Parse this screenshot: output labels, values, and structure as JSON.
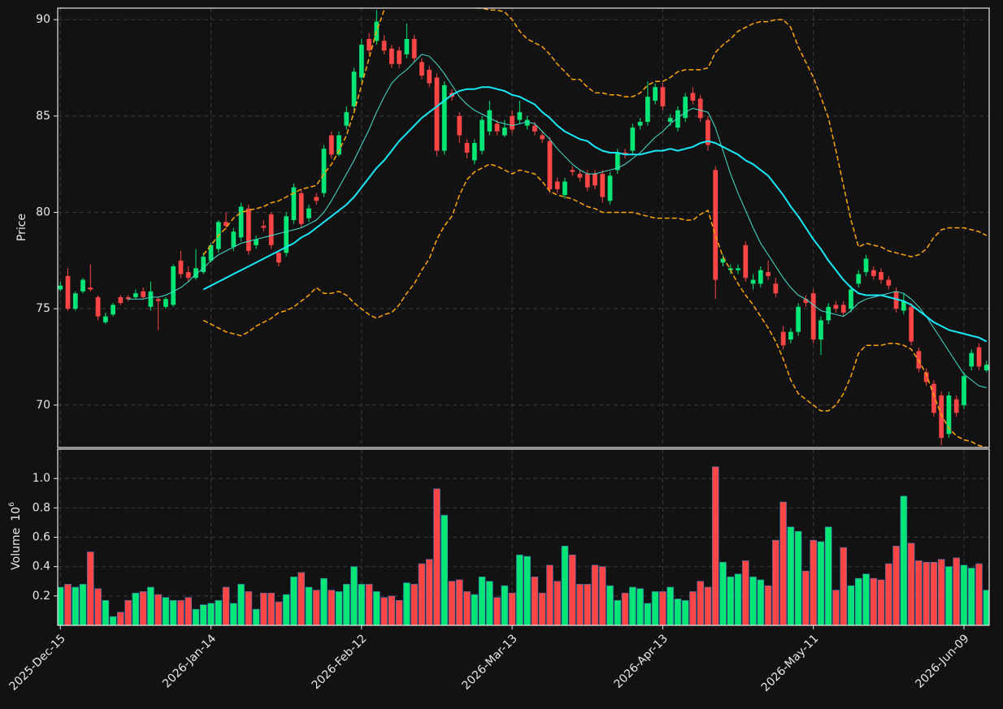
{
  "chart_data": {
    "type": "candlestick",
    "categories": [
      "2025-Dec-15",
      null,
      null,
      null,
      null,
      null,
      null,
      null,
      null,
      null,
      null,
      null,
      null,
      null,
      null,
      null,
      null,
      null,
      null,
      null,
      "2026-Jan-14",
      null,
      null,
      null,
      null,
      null,
      null,
      null,
      null,
      null,
      null,
      null,
      null,
      null,
      null,
      null,
      null,
      null,
      null,
      null,
      "2026-Feb-12",
      null,
      null,
      null,
      null,
      null,
      null,
      null,
      null,
      null,
      null,
      null,
      null,
      null,
      null,
      null,
      null,
      null,
      null,
      null,
      "2026-Mar-13",
      null,
      null,
      null,
      null,
      null,
      null,
      null,
      null,
      null,
      null,
      null,
      null,
      null,
      null,
      null,
      null,
      null,
      null,
      null,
      "2026-Apr-13",
      null,
      null,
      null,
      null,
      null,
      null,
      null,
      null,
      null,
      null,
      null,
      null,
      null,
      null,
      null,
      null,
      null,
      null,
      null,
      "2026-May-11",
      null,
      null,
      null,
      null,
      null,
      null,
      null,
      null,
      null,
      null,
      null,
      null,
      null,
      null,
      null,
      null,
      null,
      null,
      null,
      "2026-Jun-09",
      null,
      null,
      null
    ],
    "open": [
      76.0,
      76.7,
      75.0,
      75.9,
      76.1,
      75.6,
      74.3,
      74.7,
      75.6,
      75.6,
      75.6,
      75.9,
      75.1,
      75.5,
      75.1,
      75.2,
      77.5,
      76.9,
      76.6,
      76.9,
      77.5,
      78.1,
      79.5,
      78.2,
      78.7,
      80.2,
      78.3,
      79.3,
      79.9,
      77.9,
      77.9,
      79.6,
      81.0,
      79.7,
      80.8,
      81.0,
      84.0,
      83.0,
      84.5,
      85.5,
      87.0,
      89.0,
      88.9,
      88.9,
      88.5,
      88.4,
      88.2,
      89.0,
      87.8,
      87.4,
      87.0,
      83.2,
      86.2,
      85.0,
      83.6,
      82.7,
      83.2,
      84.2,
      84.6,
      84.0,
      85.0,
      84.8,
      84.5,
      84.5,
      84.0,
      83.7,
      81.6,
      80.9,
      82.2,
      82.0,
      82.0,
      82.0,
      82.0,
      80.6,
      82.2,
      83.1,
      83.2,
      84.5,
      84.7,
      85.8,
      86.5,
      84.7,
      84.4,
      84.9,
      86.2,
      85.9,
      84.8,
      82.2,
      77.4,
      77.0,
      77.0,
      78.3,
      76.3,
      76.3,
      76.9,
      76.3,
      73.8,
      73.4,
      73.8,
      75.5,
      75.8,
      73.4,
      74.4,
      75.2,
      75.2,
      75.0,
      76.3,
      76.9,
      77.0,
      76.9,
      76.5,
      75.9,
      74.9,
      75.1,
      72.8,
      71.7,
      71.1,
      70.5,
      68.5,
      70.3,
      70.0,
      72.0,
      73.0,
      71.8
    ],
    "high": [
      76.4,
      77.1,
      75.9,
      76.6,
      77.3,
      75.7,
      74.8,
      75.3,
      75.7,
      75.7,
      76.0,
      76.1,
      76.4,
      75.6,
      75.6,
      77.3,
      78.0,
      77.2,
      78.1,
      77.9,
      78.4,
      79.6,
      80.0,
      79.2,
      80.5,
      80.4,
      78.8,
      79.6,
      80.0,
      78.0,
      80.0,
      81.5,
      81.2,
      80.4,
      81.0,
      83.5,
      84.2,
      84.2,
      85.5,
      87.5,
      89.0,
      89.3,
      90.5,
      89.2,
      88.7,
      88.6,
      89.8,
      89.2,
      88.0,
      87.6,
      87.2,
      86.8,
      86.4,
      85.2,
      83.8,
      83.8,
      85.0,
      85.8,
      84.8,
      84.8,
      85.3,
      85.8,
      85.0,
      84.7,
      84.2,
      83.9,
      81.8,
      81.8,
      82.4,
      82.2,
      82.2,
      82.2,
      82.2,
      82.1,
      83.3,
      83.3,
      84.6,
      84.9,
      86.8,
      86.7,
      86.7,
      85.1,
      85.5,
      86.2,
      86.5,
      86.1,
      85.0,
      82.4,
      77.8,
      77.3,
      77.3,
      78.5,
      76.8,
      77.2,
      77.5,
      76.6,
      74.1,
      74.0,
      75.3,
      75.7,
      76.0,
      74.6,
      75.3,
      75.4,
      75.4,
      76.2,
      77.0,
      77.8,
      77.2,
      77.1,
      76.7,
      76.1,
      75.8,
      75.3,
      73.0,
      71.9,
      71.3,
      70.7,
      70.7,
      70.5,
      71.7,
      72.9,
      73.2,
      72.3
    ],
    "low": [
      75.9,
      74.9,
      74.9,
      75.8,
      75.9,
      74.4,
      74.2,
      74.6,
      75.2,
      75.4,
      75.5,
      75.5,
      74.9,
      73.9,
      75.0,
      75.1,
      76.6,
      76.4,
      76.5,
      76.8,
      77.4,
      77.9,
      79.1,
      78.0,
      78.5,
      77.8,
      78.1,
      79.0,
      78.1,
      77.2,
      77.7,
      79.4,
      79.2,
      79.5,
      80.4,
      80.8,
      82.8,
      82.9,
      84.3,
      85.3,
      86.8,
      88.2,
      88.7,
      88.2,
      87.5,
      87.5,
      88.0,
      87.8,
      86.9,
      86.5,
      82.9,
      83.0,
      85.8,
      83.6,
      82.8,
      82.5,
      83.0,
      84.0,
      84.0,
      83.9,
      84.1,
      84.6,
      84.3,
      84.0,
      83.6,
      81.0,
      81.0,
      80.7,
      81.9,
      81.6,
      81.1,
      81.2,
      80.5,
      80.4,
      82.0,
      82.8,
      83.0,
      84.3,
      84.5,
      85.6,
      85.3,
      84.5,
      84.2,
      84.7,
      85.6,
      84.7,
      83.2,
      75.5,
      77.2,
      76.8,
      76.8,
      76.4,
      76.0,
      76.1,
      76.5,
      75.6,
      72.9,
      73.2,
      73.6,
      75.1,
      73.2,
      72.6,
      74.2,
      74.8,
      74.6,
      74.8,
      76.1,
      76.7,
      76.5,
      76.3,
      76.0,
      74.8,
      74.7,
      73.1,
      71.7,
      71.0,
      69.4,
      67.9,
      68.3,
      69.4,
      69.8,
      71.8,
      71.8,
      71.7
    ],
    "close": [
      76.2,
      75.0,
      75.8,
      76.5,
      76.0,
      74.6,
      74.6,
      75.2,
      75.3,
      75.5,
      75.8,
      75.6,
      75.9,
      75.4,
      75.5,
      77.2,
      76.8,
      76.6,
      77.1,
      77.7,
      78.3,
      79.5,
      79.3,
      79.0,
      80.3,
      78.0,
      78.6,
      79.2,
      78.3,
      77.4,
      79.8,
      81.3,
      79.4,
      80.2,
      80.6,
      83.3,
      83.0,
      84.0,
      85.2,
      87.3,
      88.7,
      88.4,
      89.9,
      88.4,
      87.7,
      87.7,
      89.0,
      88.0,
      87.1,
      86.7,
      83.2,
      86.6,
      86.0,
      84.0,
      83.1,
      83.6,
      84.8,
      85.3,
      84.2,
      84.4,
      84.3,
      85.2,
      84.8,
      84.2,
      83.8,
      81.2,
      81.2,
      81.6,
      82.1,
      81.8,
      81.3,
      81.4,
      80.8,
      81.9,
      83.1,
      83.0,
      84.4,
      84.7,
      86.0,
      86.5,
      85.5,
      84.9,
      85.3,
      86.0,
      85.8,
      84.9,
      83.5,
      76.5,
      77.6,
      77.1,
      77.1,
      76.6,
      76.5,
      77.0,
      76.7,
      75.8,
      73.1,
      73.8,
      75.1,
      75.3,
      73.4,
      74.4,
      75.1,
      75.0,
      74.8,
      76.0,
      76.8,
      77.6,
      76.7,
      76.5,
      76.2,
      75.0,
      75.4,
      73.3,
      71.9,
      71.2,
      69.6,
      68.3,
      70.5,
      69.6,
      71.5,
      72.7,
      72.0,
      72.1
    ],
    "up_color": "#00e676",
    "down_color": "#ff4545",
    "ylabel": "Price",
    "ylim": [
      67.8,
      90.6
    ],
    "yticks": [
      70,
      75,
      80,
      85,
      90
    ],
    "grid": true,
    "series": [
      {
        "color": "#40e0d0",
        "linestyle": "solid",
        "linewidth": 1,
        "values": [
          null,
          null,
          null,
          null,
          null,
          null,
          null,
          null,
          null,
          75.5,
          75.5,
          75.5,
          75.6,
          75.6,
          75.7,
          75.9,
          76.1,
          76.4,
          76.8,
          77.1,
          77.5,
          77.8,
          78.0,
          78.2,
          78.4,
          78.5,
          78.6,
          78.7,
          78.8,
          78.9,
          79.0,
          79.1,
          79.2,
          79.4,
          79.6,
          80.0,
          80.6,
          81.3,
          82.0,
          82.7,
          83.5,
          84.3,
          85.2,
          86.0,
          86.7,
          87.1,
          87.4,
          87.8,
          88.2,
          88.1,
          87.7,
          87.2,
          86.6,
          86.0,
          85.6,
          85.3,
          85.1,
          84.9,
          84.7,
          84.6,
          84.5,
          84.6,
          84.7,
          84.6,
          84.2,
          83.8,
          83.3,
          82.9,
          82.5,
          82.2,
          82.0,
          82.0,
          82.1,
          82.2,
          82.3,
          82.5,
          82.8,
          83.1,
          83.5,
          83.9,
          84.2,
          84.6,
          84.9,
          85.2,
          85.4,
          85.3,
          85.2,
          84.4,
          83.2,
          82.0,
          81.0,
          80.1,
          79.2,
          78.4,
          77.8,
          77.2,
          76.6,
          76.1,
          75.7,
          75.5,
          75.2,
          74.9,
          74.8,
          74.7,
          74.6,
          74.9,
          75.3,
          75.5,
          75.6,
          75.7,
          75.8,
          75.9,
          75.8,
          75.5,
          75.1,
          74.6,
          74.0,
          73.4,
          72.8,
          72.2,
          71.6,
          71.3,
          71.0,
          70.9
        ]
      },
      {
        "color": "#18e8f8",
        "linestyle": "solid",
        "linewidth": 2,
        "values": [
          null,
          null,
          null,
          null,
          null,
          null,
          null,
          null,
          null,
          null,
          null,
          null,
          null,
          null,
          null,
          null,
          null,
          null,
          null,
          76.0,
          76.2,
          76.4,
          76.6,
          76.8,
          77.0,
          77.2,
          77.4,
          77.6,
          77.8,
          78.0,
          78.2,
          78.4,
          78.7,
          78.9,
          79.2,
          79.5,
          79.8,
          80.1,
          80.4,
          80.8,
          81.3,
          81.8,
          82.3,
          82.7,
          83.2,
          83.7,
          84.1,
          84.5,
          84.9,
          85.2,
          85.5,
          85.8,
          86.1,
          86.3,
          86.4,
          86.4,
          86.5,
          86.5,
          86.4,
          86.3,
          86.1,
          86.0,
          85.8,
          85.6,
          85.2,
          84.9,
          84.5,
          84.2,
          84.0,
          83.8,
          83.7,
          83.4,
          83.2,
          83.1,
          83.1,
          83.0,
          83.0,
          83.0,
          83.1,
          83.2,
          83.2,
          83.3,
          83.2,
          83.3,
          83.4,
          83.6,
          83.7,
          83.6,
          83.4,
          83.2,
          83.0,
          82.7,
          82.5,
          82.2,
          81.9,
          81.4,
          80.9,
          80.3,
          79.8,
          79.2,
          78.6,
          78.1,
          77.5,
          77.0,
          76.5,
          76.1,
          75.8,
          75.7,
          75.7,
          75.7,
          75.6,
          75.5,
          75.4,
          75.2,
          74.9,
          74.6,
          74.3,
          74.1,
          73.9,
          73.8,
          73.7,
          73.6,
          73.5,
          73.3
        ]
      },
      {
        "color": "#ffa500",
        "linestyle": "dashed",
        "linewidth": 1.5,
        "values": [
          null,
          null,
          null,
          null,
          null,
          null,
          null,
          null,
          null,
          null,
          null,
          null,
          null,
          null,
          null,
          null,
          null,
          null,
          null,
          77.8,
          78.3,
          78.8,
          79.2,
          79.7,
          80.0,
          80.1,
          80.2,
          80.3,
          80.5,
          80.6,
          80.8,
          81.0,
          81.2,
          81.3,
          81.4,
          82.0,
          82.5,
          83.2,
          84.0,
          85.2,
          86.6,
          88.0,
          89.4,
          90.5,
          91.2,
          91.7,
          92.0,
          92.2,
          92.3,
          92.3,
          92.2,
          91.9,
          91.6,
          91.2,
          90.9,
          90.6,
          90.6,
          90.5,
          90.5,
          90.4,
          90.0,
          89.4,
          89.0,
          88.8,
          88.6,
          88.2,
          87.7,
          87.3,
          86.9,
          86.9,
          86.5,
          86.2,
          86.2,
          86.1,
          86.1,
          86.0,
          86.0,
          86.2,
          86.6,
          86.8,
          86.8,
          87.0,
          87.3,
          87.4,
          87.4,
          87.4,
          87.5,
          88.3,
          88.7,
          89.0,
          89.4,
          89.6,
          89.8,
          89.9,
          89.9,
          90.0,
          90.0,
          89.6,
          88.6,
          87.8,
          87.0,
          86.0,
          84.9,
          83.2,
          81.4,
          79.6,
          78.2,
          78.4,
          78.3,
          78.2,
          78.0,
          77.9,
          77.8,
          77.7,
          77.8,
          78.1,
          78.7,
          79.1,
          79.2,
          79.2,
          79.2,
          79.1,
          79.0,
          78.8
        ]
      },
      {
        "color": "#ffa500",
        "linestyle": "dashed",
        "linewidth": 1.5,
        "values": [
          null,
          null,
          null,
          null,
          null,
          null,
          null,
          null,
          null,
          null,
          null,
          null,
          null,
          null,
          null,
          null,
          null,
          null,
          null,
          74.4,
          74.2,
          74.0,
          73.8,
          73.7,
          73.6,
          73.8,
          74.1,
          74.3,
          74.5,
          74.8,
          74.9,
          75.1,
          75.4,
          75.7,
          76.1,
          75.8,
          75.8,
          75.9,
          75.7,
          75.3,
          75.0,
          74.7,
          74.5,
          74.7,
          74.8,
          75.2,
          75.8,
          76.3,
          77.0,
          77.6,
          78.6,
          79.3,
          79.8,
          80.9,
          81.7,
          82.1,
          82.3,
          82.5,
          82.4,
          82.2,
          82.0,
          82.2,
          82.1,
          82.0,
          81.6,
          81.1,
          80.9,
          80.8,
          80.7,
          80.5,
          80.3,
          80.2,
          80.0,
          80.0,
          80.0,
          80.0,
          80.0,
          79.9,
          79.8,
          79.7,
          79.7,
          79.7,
          79.7,
          79.6,
          79.6,
          79.9,
          80.1,
          78.8,
          77.7,
          77.0,
          76.3,
          75.7,
          75.2,
          74.6,
          74.0,
          73.3,
          72.4,
          71.3,
          70.6,
          70.3,
          70.0,
          69.7,
          69.7,
          70.0,
          70.6,
          71.5,
          72.7,
          73.1,
          73.1,
          73.1,
          73.2,
          73.2,
          73.1,
          72.9,
          72.3,
          71.6,
          70.5,
          69.5,
          68.8,
          68.4,
          68.2,
          68.1,
          67.9,
          67.8
        ]
      }
    ],
    "volume": {
      "ylabel": "Volume",
      "scale_base": "10",
      "scale_exponent": "6",
      "ylim": [
        0,
        1.2
      ],
      "yticks": [
        0.2,
        0.4,
        0.6,
        0.8,
        {
          "value": 1,
          "label": "1.0"
        }
      ],
      "values": [
        0.26,
        0.28,
        0.26,
        0.28,
        0.5,
        0.25,
        0.17,
        0.06,
        0.09,
        0.17,
        0.22,
        0.23,
        0.26,
        0.21,
        0.19,
        0.17,
        0.17,
        0.19,
        0.11,
        0.14,
        0.15,
        0.17,
        0.26,
        0.15,
        0.28,
        0.23,
        0.11,
        0.22,
        0.22,
        0.16,
        0.21,
        0.33,
        0.36,
        0.26,
        0.24,
        0.32,
        0.24,
        0.23,
        0.28,
        0.4,
        0.28,
        0.28,
        0.23,
        0.19,
        0.2,
        0.17,
        0.29,
        0.28,
        0.42,
        0.45,
        0.93,
        0.75,
        0.3,
        0.31,
        0.23,
        0.21,
        0.33,
        0.3,
        0.19,
        0.27,
        0.22,
        0.48,
        0.47,
        0.33,
        0.22,
        0.41,
        0.3,
        0.54,
        0.48,
        0.28,
        0.28,
        0.41,
        0.4,
        0.27,
        0.17,
        0.22,
        0.26,
        0.25,
        0.15,
        0.23,
        0.23,
        0.26,
        0.18,
        0.17,
        0.23,
        0.3,
        0.26,
        1.08,
        0.43,
        0.33,
        0.35,
        0.44,
        0.33,
        0.31,
        0.27,
        0.58,
        0.84,
        0.67,
        0.64,
        0.37,
        0.58,
        0.57,
        0.67,
        0.24,
        0.53,
        0.27,
        0.32,
        0.35,
        0.32,
        0.31,
        0.42,
        0.54,
        0.88,
        0.56,
        0.44,
        0.43,
        0.43,
        0.45,
        0.4,
        0.46,
        0.41,
        0.39,
        0.42,
        0.24
      ]
    }
  }
}
